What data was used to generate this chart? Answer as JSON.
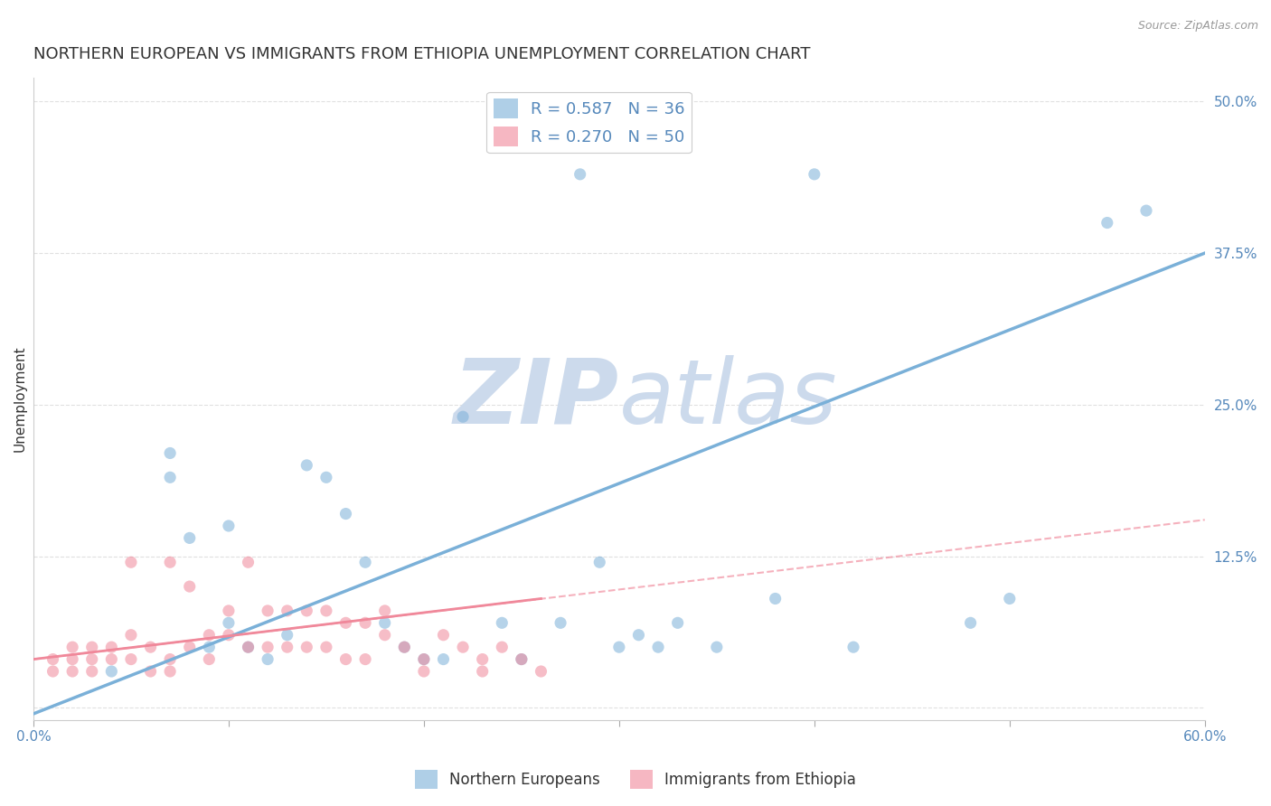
{
  "title": "NORTHERN EUROPEAN VS IMMIGRANTS FROM ETHIOPIA UNEMPLOYMENT CORRELATION CHART",
  "source": "Source: ZipAtlas.com",
  "ylabel": "Unemployment",
  "xlim": [
    0.0,
    0.6
  ],
  "ylim": [
    -0.01,
    0.52
  ],
  "xticks": [
    0.0,
    0.1,
    0.2,
    0.3,
    0.4,
    0.5,
    0.6
  ],
  "xtick_labels": [
    "0.0%",
    "",
    "",
    "",
    "",
    "",
    "60.0%"
  ],
  "ytick_labels_right": [
    "50.0%",
    "37.5%",
    "25.0%",
    "12.5%",
    ""
  ],
  "ytick_values_right": [
    0.5,
    0.375,
    0.25,
    0.125,
    0.0
  ],
  "background_color": "#ffffff",
  "watermark_zip": "ZIP",
  "watermark_atlas": "atlas",
  "watermark_color": "#ccdaec",
  "title_color": "#333333",
  "source_color": "#999999",
  "blue_color": "#7ab0d8",
  "pink_color": "#f0889a",
  "legend_R1": "R = 0.587",
  "legend_N1": "N = 36",
  "legend_R2": "R = 0.270",
  "legend_N2": "N = 50",
  "legend_label1": "Northern Europeans",
  "legend_label2": "Immigrants from Ethiopia",
  "blue_scatter_x": [
    0.04,
    0.07,
    0.07,
    0.08,
    0.09,
    0.1,
    0.1,
    0.11,
    0.12,
    0.13,
    0.14,
    0.15,
    0.16,
    0.17,
    0.18,
    0.19,
    0.2,
    0.21,
    0.22,
    0.24,
    0.25,
    0.27,
    0.28,
    0.29,
    0.3,
    0.31,
    0.32,
    0.33,
    0.35,
    0.38,
    0.4,
    0.42,
    0.48,
    0.5,
    0.55,
    0.57
  ],
  "blue_scatter_y": [
    0.03,
    0.21,
    0.19,
    0.14,
    0.05,
    0.07,
    0.15,
    0.05,
    0.04,
    0.06,
    0.2,
    0.19,
    0.16,
    0.12,
    0.07,
    0.05,
    0.04,
    0.04,
    0.24,
    0.07,
    0.04,
    0.07,
    0.44,
    0.12,
    0.05,
    0.06,
    0.05,
    0.07,
    0.05,
    0.09,
    0.44,
    0.05,
    0.07,
    0.09,
    0.4,
    0.41
  ],
  "pink_scatter_x": [
    0.01,
    0.01,
    0.02,
    0.02,
    0.02,
    0.03,
    0.03,
    0.03,
    0.04,
    0.04,
    0.05,
    0.05,
    0.05,
    0.06,
    0.06,
    0.07,
    0.07,
    0.07,
    0.08,
    0.08,
    0.09,
    0.09,
    0.1,
    0.1,
    0.11,
    0.11,
    0.12,
    0.12,
    0.13,
    0.13,
    0.14,
    0.14,
    0.15,
    0.15,
    0.16,
    0.16,
    0.17,
    0.17,
    0.18,
    0.18,
    0.19,
    0.2,
    0.2,
    0.21,
    0.22,
    0.23,
    0.23,
    0.24,
    0.25,
    0.26
  ],
  "pink_scatter_y": [
    0.04,
    0.03,
    0.05,
    0.04,
    0.03,
    0.05,
    0.04,
    0.03,
    0.05,
    0.04,
    0.12,
    0.06,
    0.04,
    0.05,
    0.03,
    0.12,
    0.04,
    0.03,
    0.1,
    0.05,
    0.06,
    0.04,
    0.08,
    0.06,
    0.12,
    0.05,
    0.08,
    0.05,
    0.08,
    0.05,
    0.08,
    0.05,
    0.08,
    0.05,
    0.07,
    0.04,
    0.07,
    0.04,
    0.08,
    0.06,
    0.05,
    0.04,
    0.03,
    0.06,
    0.05,
    0.04,
    0.03,
    0.05,
    0.04,
    0.03
  ],
  "blue_line_x": [
    0.0,
    0.6
  ],
  "blue_line_y": [
    -0.005,
    0.375
  ],
  "pink_solid_line_x": [
    0.0,
    0.26
  ],
  "pink_solid_line_y": [
    0.04,
    0.09
  ],
  "pink_dashed_line_x": [
    0.0,
    0.6
  ],
  "pink_dashed_line_y": [
    0.04,
    0.155
  ],
  "grid_color": "#e0e0e0",
  "title_fontsize": 13,
  "axis_label_fontsize": 11,
  "tick_fontsize": 11,
  "right_tick_color": "#5588bb"
}
